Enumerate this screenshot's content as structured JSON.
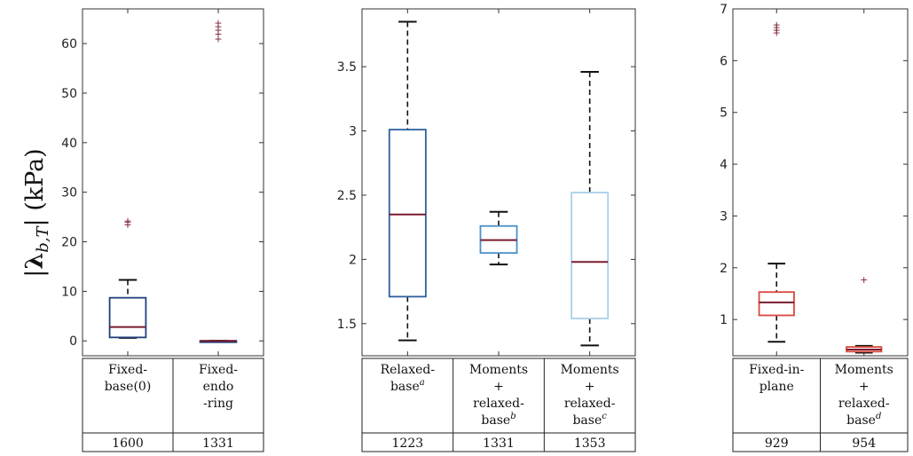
{
  "y_axis_label": "|λb,T| (kPa)",
  "chart_data": [
    {
      "type": "box",
      "yticks": [
        0,
        10,
        20,
        30,
        40,
        50,
        60
      ],
      "ylim": [
        -3,
        67
      ],
      "categories": [
        {
          "label_lines": [
            "Fixed-",
            "base(0)"
          ],
          "count": "1600",
          "color": "#1f3f7a",
          "q1": 0.7,
          "median": 2.8,
          "q3": 8.7,
          "whisker_low": 0.6,
          "whisker_high": 12.3,
          "outliers": [
            23.5,
            24.0,
            24.3
          ]
        },
        {
          "label_lines": [
            "Fixed-",
            "endo",
            "-ring"
          ],
          "count": "1331",
          "color": "#1f3f7a",
          "q1": 0.0,
          "median": 0.0,
          "q3": 0.0,
          "whisker_low": 0.0,
          "whisker_high": 0.0,
          "outliers": [
            61.0,
            62.0,
            62.8,
            63.5,
            64.2
          ]
        }
      ]
    },
    {
      "type": "box",
      "yticks": [
        1.5,
        2,
        2.5,
        3,
        3.5
      ],
      "ylim": [
        1.25,
        3.95
      ],
      "categories": [
        {
          "label_lines": [
            "Relaxed-",
            "base^a"
          ],
          "count": "1223",
          "color": "#2e5fa0",
          "q1": 1.71,
          "median": 2.35,
          "q3": 3.01,
          "whisker_low": 1.37,
          "whisker_high": 3.85,
          "outliers": []
        },
        {
          "label_lines": [
            "Moments",
            "+",
            "relaxed-",
            "base^b"
          ],
          "count": "1331",
          "color": "#4a90c8",
          "q1": 2.05,
          "median": 2.15,
          "q3": 2.26,
          "whisker_low": 1.96,
          "whisker_high": 2.37,
          "outliers": []
        },
        {
          "label_lines": [
            "Moments",
            "+",
            "relaxed-",
            "base^c"
          ],
          "count": "1353",
          "color": "#a8d0e6",
          "q1": 1.54,
          "median": 1.98,
          "q3": 2.52,
          "whisker_low": 1.33,
          "whisker_high": 3.46,
          "outliers": []
        }
      ]
    },
    {
      "type": "box",
      "yticks": [
        1,
        2,
        3,
        4,
        5,
        6,
        7
      ],
      "ylim": [
        0.3,
        7
      ],
      "categories": [
        {
          "label_lines": [
            "Fixed-in-",
            "plane"
          ],
          "count": "929",
          "color": "#d9473d",
          "q1": 1.08,
          "median": 1.33,
          "q3": 1.53,
          "whisker_low": 0.57,
          "whisker_high": 2.08,
          "outliers": [
            6.55,
            6.6,
            6.65,
            6.7
          ]
        },
        {
          "label_lines": [
            "Moments",
            "+",
            "relaxed-",
            "base^d"
          ],
          "count": "954",
          "color": "#d9473d",
          "q1": 0.38,
          "median": 0.42,
          "q3": 0.47,
          "whisker_low": 0.36,
          "whisker_high": 0.49,
          "outliers": [
            1.77
          ]
        }
      ]
    }
  ]
}
